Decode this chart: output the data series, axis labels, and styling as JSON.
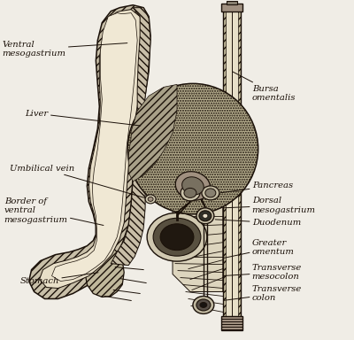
{
  "background_color": "#f0ede6",
  "line_color": "#1a1008",
  "font_size": 7.2,
  "labels": {
    "ventral_mesogastrium": "Ventral\nmesogastrium",
    "liver": "Liver",
    "umbilical_vein": "Umbilical vein",
    "border_ventral": "Border of\nventral\nmesogastrium",
    "stomach": "Stomach",
    "bursa_omentalis": "Bursa\nomentalis",
    "pancreas": "Pancreas",
    "dorsal_mesogastrium": "Dorsal\nmesogastrium",
    "duodenum": "Duodenum",
    "greater_omentum": "Greater\nomentum",
    "transverse_mesocolon": "Transverse\nmesocolon",
    "transverse_colon": "Transverse\ncolon"
  }
}
